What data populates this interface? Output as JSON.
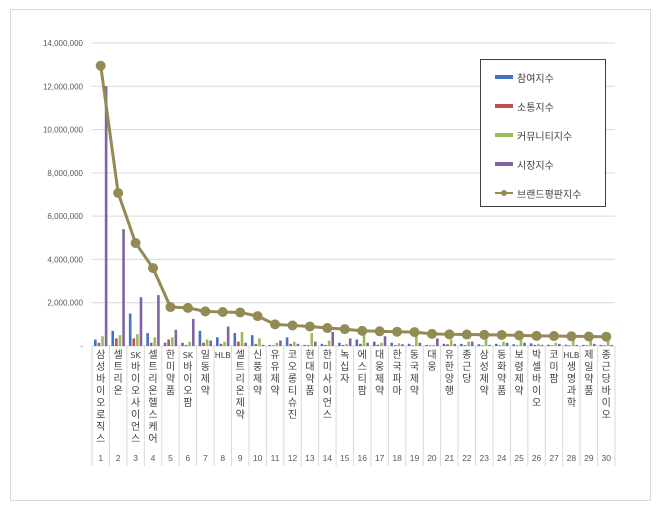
{
  "chart_data": {
    "type": "bar+line",
    "title": "",
    "xlabel": "",
    "ylabel": "",
    "ylim": [
      0,
      14000000
    ],
    "yticks": [
      0,
      2000000,
      4000000,
      6000000,
      8000000,
      10000000,
      12000000,
      14000000
    ],
    "ytick_labels": [
      "-",
      "2,000,000",
      "4,000,000",
      "6,000,000",
      "8,000,000",
      "10,000,000",
      "12,000,000",
      "14,000,000"
    ],
    "grid": true,
    "legend_position": "upper right (inside)",
    "categories": [
      "삼성바이오로직스",
      "셀트리온",
      "SK바이오사이언스",
      "셀트리온헬스케어",
      "한미약품",
      "SK바이오팜",
      "일동제약",
      "HLB",
      "셀트리온제약",
      "신풍제약",
      "유유제약",
      "코오롱티슈진",
      "현대약품",
      "한미사이언스",
      "녹십자",
      "에스티팜",
      "대웅제약",
      "한국파마",
      "동국제약",
      "대웅",
      "유한양행",
      "종근당",
      "삼성제약",
      "동화약품",
      "보령제약",
      "박셀바이오",
      "코미팜",
      "HLB생명과학",
      "제일약품",
      "종근당바이오"
    ],
    "category_numbers": [
      "1",
      "2",
      "3",
      "4",
      "5",
      "6",
      "7",
      "8",
      "9",
      "10",
      "11",
      "12",
      "13",
      "14",
      "15",
      "16",
      "17",
      "18",
      "19",
      "20",
      "21",
      "22",
      "23",
      "24",
      "25",
      "26",
      "27",
      "28",
      "29",
      "30"
    ],
    "series": [
      {
        "name": "참여지수",
        "type": "bar",
        "color": "#4472c4",
        "values": [
          300000,
          700000,
          1500000,
          600000,
          150000,
          150000,
          700000,
          400000,
          600000,
          500000,
          50000,
          400000,
          50000,
          100000,
          150000,
          300000,
          200000,
          150000,
          100000,
          50000,
          100000,
          100000,
          80000,
          100000,
          80000,
          120000,
          60000,
          60000,
          50000,
          50000
        ]
      },
      {
        "name": "소통지수",
        "type": "bar",
        "color": "#c0504d",
        "values": [
          150000,
          350000,
          350000,
          150000,
          300000,
          50000,
          150000,
          100000,
          200000,
          100000,
          30000,
          100000,
          40000,
          50000,
          50000,
          100000,
          60000,
          40000,
          30000,
          30000,
          80000,
          40000,
          30000,
          30000,
          30000,
          50000,
          30000,
          30000,
          30000,
          30000
        ]
      },
      {
        "name": "커뮤니티지수",
        "type": "bar",
        "color": "#9bbb59",
        "values": [
          450000,
          500000,
          550000,
          400000,
          400000,
          200000,
          300000,
          200000,
          650000,
          350000,
          150000,
          200000,
          600000,
          250000,
          100000,
          600000,
          150000,
          120000,
          500000,
          50000,
          300000,
          200000,
          350000,
          200000,
          450000,
          100000,
          150000,
          400000,
          350000,
          350000
        ]
      },
      {
        "name": "시장지수",
        "type": "bar",
        "color": "#8064a2",
        "values": [
          12000000,
          5400000,
          2250000,
          2350000,
          750000,
          1250000,
          250000,
          900000,
          150000,
          50000,
          250000,
          100000,
          200000,
          650000,
          350000,
          150000,
          450000,
          80000,
          150000,
          350000,
          100000,
          200000,
          50000,
          150000,
          150000,
          50000,
          100000,
          50000,
          100000,
          50000
        ]
      },
      {
        "name": "브랜드평판지수",
        "type": "line",
        "color": "#948a54",
        "values": [
          12950000,
          7070000,
          4760000,
          3600000,
          1800000,
          1760000,
          1600000,
          1570000,
          1550000,
          1380000,
          1000000,
          950000,
          900000,
          830000,
          780000,
          700000,
          680000,
          660000,
          640000,
          560000,
          540000,
          530000,
          520000,
          510000,
          490000,
          470000,
          460000,
          450000,
          440000,
          430000
        ]
      }
    ]
  },
  "legend": {
    "items": [
      {
        "label": "참여지수",
        "color": "#4472c4",
        "kind": "bar"
      },
      {
        "label": "소통지수",
        "color": "#c0504d",
        "kind": "bar"
      },
      {
        "label": "커뮤니티지수",
        "color": "#9bbb59",
        "kind": "bar"
      },
      {
        "label": "시장지수",
        "color": "#8064a2",
        "kind": "bar"
      },
      {
        "label": "브랜드평판지수",
        "color": "#948a54",
        "kind": "line"
      }
    ]
  }
}
